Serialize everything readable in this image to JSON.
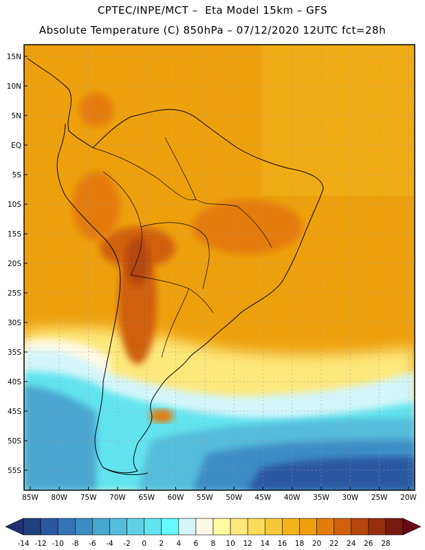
{
  "header": {
    "line1": "CPTEC/INPE/MCT –  Eta Model 15km – GFS",
    "line2": "Absolute Temperature (C) 850hPa – 07/12/2020 12UTC fct=28h"
  },
  "map": {
    "lat_labels": [
      "15N",
      "10N",
      "5N",
      "EQ",
      "5S",
      "10S",
      "15S",
      "20S",
      "25S",
      "30S",
      "35S",
      "40S",
      "45S",
      "50S",
      "55S"
    ],
    "lon_labels": [
      "85W",
      "80W",
      "75W",
      "70W",
      "65W",
      "60W",
      "55W",
      "50W",
      "45W",
      "40W",
      "35W",
      "30W",
      "25W",
      "20W"
    ],
    "variable": "Absolute Temperature",
    "units": "C",
    "level": "850hPa"
  },
  "colorbar": {
    "labels": [
      "-14",
      "-12",
      "-10",
      "-8",
      "-6",
      "-4",
      "-2",
      "0",
      "2",
      "4",
      "6",
      "8",
      "10",
      "12",
      "14",
      "16",
      "18",
      "20",
      "22",
      "24",
      "26",
      "28"
    ],
    "colors": [
      "#20407e",
      "#2a58a0",
      "#3574b4",
      "#3d8cc4",
      "#48a6d0",
      "#55bcdc",
      "#5fd0e6",
      "#62e4ee",
      "#66fafa",
      "#d4f6fa",
      "#fff8e4",
      "#fefca0",
      "#fde87c",
      "#fadc5c",
      "#f6c83a",
      "#f2b41a",
      "#eea00c",
      "#e47c0c",
      "#d0600c",
      "#b4460e",
      "#962e0e",
      "#781a10"
    ]
  }
}
